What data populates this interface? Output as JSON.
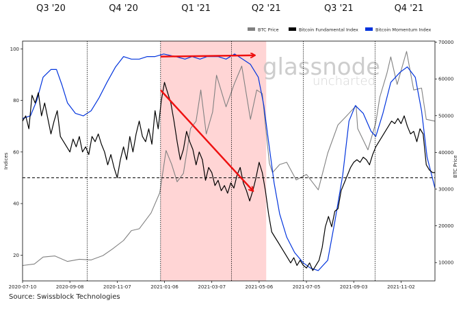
{
  "chart_data": {
    "type": "line",
    "quarter_labels": [
      "Q3 '20",
      "Q4 '20",
      "Q1 '21",
      "Q2 '21",
      "Q3 '21",
      "Q4 '21"
    ],
    "x_tick_labels": [
      "2020-07-10",
      "2020-09-08",
      "2020-11-07",
      "2021-01-06",
      "2021-03-07",
      "2021-05-06",
      "2021-07-05",
      "2021-09-03",
      "2021-11-02"
    ],
    "xlim": [
      "2020-07-10",
      "2021-12-15"
    ],
    "ylabel_left": "Indices",
    "ylabel_right": "BTC Price",
    "ylim_left": [
      10,
      103
    ],
    "yticks_left": [
      20,
      40,
      60,
      80,
      100
    ],
    "ylim_right": [
      5000,
      70300
    ],
    "yticks_right": [
      10000,
      20000,
      30000,
      40000,
      50000,
      60000,
      70000
    ],
    "legend": [
      {
        "name": "BTC Price",
        "color": "#808080"
      },
      {
        "name": "Bitcoin Fundamental Index",
        "color": "#000000"
      },
      {
        "name": "Bitcoin Momentum Index",
        "color": "#0033dd"
      }
    ],
    "reference_line": {
      "y": 50,
      "style": "dashed"
    },
    "highlight_span": {
      "from": "2021-01-01",
      "to": "2021-05-15",
      "color": "#ffd5d5"
    },
    "vertical_markers": [
      "2020-09-30",
      "2021-01-01",
      "2021-04-01",
      "2021-07-01",
      "2021-09-30"
    ],
    "watermark": {
      "line1": "glassnode",
      "line2": "uncharted"
    },
    "series": [
      {
        "name": "BTC Price",
        "color": "#808080",
        "axis": "right",
        "points": [
          [
            "2020-07-10",
            9200
          ],
          [
            "2020-07-25",
            9600
          ],
          [
            "2020-08-05",
            11500
          ],
          [
            "2020-08-20",
            11800
          ],
          [
            "2020-09-05",
            10300
          ],
          [
            "2020-09-20",
            10900
          ],
          [
            "2020-10-05",
            10700
          ],
          [
            "2020-10-20",
            11900
          ],
          [
            "2020-11-01",
            13700
          ],
          [
            "2020-11-15",
            16000
          ],
          [
            "2020-11-25",
            18700
          ],
          [
            "2020-12-05",
            19200
          ],
          [
            "2020-12-20",
            23500
          ],
          [
            "2020-12-31",
            29000
          ],
          [
            "2021-01-08",
            40500
          ],
          [
            "2021-01-15",
            36800
          ],
          [
            "2021-01-22",
            32000
          ],
          [
            "2021-01-30",
            34300
          ],
          [
            "2021-02-08",
            46500
          ],
          [
            "2021-02-15",
            48500
          ],
          [
            "2021-02-21",
            57000
          ],
          [
            "2021-02-28",
            45000
          ],
          [
            "2021-03-08",
            51000
          ],
          [
            "2021-03-13",
            61000
          ],
          [
            "2021-03-25",
            52400
          ],
          [
            "2021-04-05",
            58900
          ],
          [
            "2021-04-14",
            63500
          ],
          [
            "2021-04-25",
            49000
          ],
          [
            "2021-05-03",
            57000
          ],
          [
            "2021-05-10",
            56000
          ],
          [
            "2021-05-13",
            49500
          ],
          [
            "2021-05-19",
            37000
          ],
          [
            "2021-05-23",
            34500
          ],
          [
            "2021-06-01",
            36700
          ],
          [
            "2021-06-10",
            37300
          ],
          [
            "2021-06-22",
            32500
          ],
          [
            "2021-07-05",
            34000
          ],
          [
            "2021-07-20",
            29800
          ],
          [
            "2021-08-01",
            39800
          ],
          [
            "2021-08-14",
            47500
          ],
          [
            "2021-08-23",
            49500
          ],
          [
            "2021-09-06",
            52700
          ],
          [
            "2021-09-08",
            46500
          ],
          [
            "2021-09-21",
            40700
          ],
          [
            "2021-10-01",
            48100
          ],
          [
            "2021-10-06",
            55000
          ],
          [
            "2021-10-15",
            61500
          ],
          [
            "2021-10-20",
            66000
          ],
          [
            "2021-10-28",
            58500
          ],
          [
            "2021-11-09",
            67500
          ],
          [
            "2021-11-18",
            57000
          ],
          [
            "2021-11-28",
            57500
          ],
          [
            "2021-12-04",
            49000
          ],
          [
            "2021-12-15",
            48500
          ]
        ]
      },
      {
        "name": "Bitcoin Fundamental Index",
        "color": "#000000",
        "axis": "left",
        "points": [
          [
            "2020-07-10",
            72
          ],
          [
            "2020-07-14",
            74
          ],
          [
            "2020-07-18",
            69
          ],
          [
            "2020-07-22",
            82
          ],
          [
            "2020-07-26",
            79
          ],
          [
            "2020-07-30",
            83
          ],
          [
            "2020-08-03",
            74
          ],
          [
            "2020-08-07",
            79
          ],
          [
            "2020-08-11",
            73
          ],
          [
            "2020-08-15",
            67
          ],
          [
            "2020-08-19",
            72
          ],
          [
            "2020-08-23",
            76
          ],
          [
            "2020-08-27",
            66
          ],
          [
            "2020-08-31",
            64
          ],
          [
            "2020-09-04",
            62
          ],
          [
            "2020-09-08",
            60
          ],
          [
            "2020-09-12",
            65
          ],
          [
            "2020-09-16",
            62
          ],
          [
            "2020-09-20",
            66
          ],
          [
            "2020-09-24",
            60
          ],
          [
            "2020-09-28",
            62
          ],
          [
            "2020-10-02",
            59
          ],
          [
            "2020-10-06",
            66
          ],
          [
            "2020-10-10",
            64
          ],
          [
            "2020-10-14",
            67
          ],
          [
            "2020-10-18",
            63
          ],
          [
            "2020-10-22",
            60
          ],
          [
            "2020-10-26",
            55
          ],
          [
            "2020-10-30",
            59
          ],
          [
            "2020-11-03",
            54
          ],
          [
            "2020-11-07",
            50
          ],
          [
            "2020-11-11",
            57
          ],
          [
            "2020-11-15",
            62
          ],
          [
            "2020-11-19",
            57
          ],
          [
            "2020-11-23",
            66
          ],
          [
            "2020-11-27",
            60
          ],
          [
            "2020-12-01",
            67
          ],
          [
            "2020-12-05",
            72
          ],
          [
            "2020-12-09",
            66
          ],
          [
            "2020-12-13",
            64
          ],
          [
            "2020-12-17",
            69
          ],
          [
            "2020-12-21",
            63
          ],
          [
            "2020-12-25",
            76
          ],
          [
            "2020-12-29",
            69
          ],
          [
            "2021-01-02",
            80
          ],
          [
            "2021-01-06",
            87
          ],
          [
            "2021-01-10",
            83
          ],
          [
            "2021-01-14",
            79
          ],
          [
            "2021-01-18",
            72
          ],
          [
            "2021-01-22",
            64
          ],
          [
            "2021-01-26",
            57
          ],
          [
            "2021-01-30",
            61
          ],
          [
            "2021-02-03",
            68
          ],
          [
            "2021-02-07",
            64
          ],
          [
            "2021-02-11",
            61
          ],
          [
            "2021-02-15",
            55
          ],
          [
            "2021-02-19",
            60
          ],
          [
            "2021-02-23",
            57
          ],
          [
            "2021-02-27",
            49
          ],
          [
            "2021-03-03",
            54
          ],
          [
            "2021-03-07",
            52
          ],
          [
            "2021-03-11",
            47
          ],
          [
            "2021-03-15",
            49
          ],
          [
            "2021-03-19",
            45
          ],
          [
            "2021-03-23",
            47
          ],
          [
            "2021-03-27",
            44
          ],
          [
            "2021-03-31",
            48
          ],
          [
            "2021-04-04",
            46
          ],
          [
            "2021-04-08",
            51
          ],
          [
            "2021-04-12",
            54
          ],
          [
            "2021-04-16",
            48
          ],
          [
            "2021-04-20",
            45
          ],
          [
            "2021-04-24",
            41
          ],
          [
            "2021-04-28",
            45
          ],
          [
            "2021-05-02",
            50
          ],
          [
            "2021-05-06",
            56
          ],
          [
            "2021-05-10",
            52
          ],
          [
            "2021-05-14",
            45
          ],
          [
            "2021-05-18",
            36
          ],
          [
            "2021-05-22",
            29
          ],
          [
            "2021-05-26",
            27
          ],
          [
            "2021-05-30",
            25
          ],
          [
            "2021-06-03",
            23
          ],
          [
            "2021-06-07",
            21
          ],
          [
            "2021-06-11",
            19
          ],
          [
            "2021-06-15",
            17
          ],
          [
            "2021-06-19",
            19
          ],
          [
            "2021-06-23",
            16
          ],
          [
            "2021-06-27",
            18
          ],
          [
            "2021-07-01",
            16
          ],
          [
            "2021-07-05",
            15
          ],
          [
            "2021-07-09",
            17
          ],
          [
            "2021-07-13",
            14
          ],
          [
            "2021-07-17",
            16
          ],
          [
            "2021-07-21",
            18
          ],
          [
            "2021-07-25",
            23
          ],
          [
            "2021-07-29",
            31
          ],
          [
            "2021-08-02",
            35
          ],
          [
            "2021-08-06",
            31
          ],
          [
            "2021-08-10",
            37
          ],
          [
            "2021-08-14",
            38
          ],
          [
            "2021-08-18",
            45
          ],
          [
            "2021-08-22",
            48
          ],
          [
            "2021-08-26",
            51
          ],
          [
            "2021-08-30",
            54
          ],
          [
            "2021-09-03",
            56
          ],
          [
            "2021-09-07",
            57
          ],
          [
            "2021-09-11",
            56
          ],
          [
            "2021-09-15",
            58
          ],
          [
            "2021-09-19",
            57
          ],
          [
            "2021-09-23",
            55
          ],
          [
            "2021-09-27",
            59
          ],
          [
            "2021-10-01",
            62
          ],
          [
            "2021-10-05",
            64
          ],
          [
            "2021-10-09",
            66
          ],
          [
            "2021-10-13",
            68
          ],
          [
            "2021-10-17",
            70
          ],
          [
            "2021-10-21",
            72
          ],
          [
            "2021-10-25",
            71
          ],
          [
            "2021-10-29",
            73
          ],
          [
            "2021-11-02",
            71
          ],
          [
            "2021-11-06",
            74
          ],
          [
            "2021-11-10",
            70
          ],
          [
            "2021-11-14",
            67
          ],
          [
            "2021-11-18",
            68
          ],
          [
            "2021-11-22",
            64
          ],
          [
            "2021-11-26",
            69
          ],
          [
            "2021-11-30",
            67
          ],
          [
            "2021-12-04",
            55
          ],
          [
            "2021-12-08",
            53
          ],
          [
            "2021-12-12",
            52
          ],
          [
            "2021-12-15",
            52
          ]
        ]
      },
      {
        "name": "Bitcoin Momentum Index",
        "color": "#0033dd",
        "axis": "left",
        "points": [
          [
            "2020-07-10",
            73
          ],
          [
            "2020-07-20",
            74
          ],
          [
            "2020-07-28",
            80
          ],
          [
            "2020-08-05",
            89
          ],
          [
            "2020-08-15",
            92
          ],
          [
            "2020-08-22",
            92
          ],
          [
            "2020-08-29",
            86
          ],
          [
            "2020-09-05",
            79
          ],
          [
            "2020-09-15",
            75
          ],
          [
            "2020-09-25",
            74
          ],
          [
            "2020-10-05",
            76
          ],
          [
            "2020-10-15",
            81
          ],
          [
            "2020-10-25",
            87
          ],
          [
            "2020-11-05",
            93
          ],
          [
            "2020-11-15",
            97
          ],
          [
            "2020-11-25",
            96
          ],
          [
            "2020-12-05",
            96
          ],
          [
            "2020-12-15",
            97
          ],
          [
            "2020-12-25",
            97
          ],
          [
            "2021-01-05",
            98
          ],
          [
            "2021-01-20",
            97
          ],
          [
            "2021-02-01",
            96
          ],
          [
            "2021-02-10",
            97
          ],
          [
            "2021-02-20",
            96
          ],
          [
            "2021-03-01",
            97
          ],
          [
            "2021-03-15",
            97
          ],
          [
            "2021-03-25",
            96
          ],
          [
            "2021-04-05",
            98
          ],
          [
            "2021-04-15",
            96
          ],
          [
            "2021-04-25",
            94
          ],
          [
            "2021-05-05",
            89
          ],
          [
            "2021-05-12",
            78
          ],
          [
            "2021-05-18",
            64
          ],
          [
            "2021-05-25",
            48
          ],
          [
            "2021-06-01",
            36
          ],
          [
            "2021-06-10",
            27
          ],
          [
            "2021-06-20",
            21
          ],
          [
            "2021-07-01",
            17
          ],
          [
            "2021-07-10",
            15
          ],
          [
            "2021-07-20",
            14
          ],
          [
            "2021-08-01",
            18
          ],
          [
            "2021-08-10",
            33
          ],
          [
            "2021-08-20",
            51
          ],
          [
            "2021-08-28",
            72
          ],
          [
            "2021-09-05",
            78
          ],
          [
            "2021-09-15",
            75
          ],
          [
            "2021-09-25",
            68
          ],
          [
            "2021-10-01",
            66
          ],
          [
            "2021-10-10",
            75
          ],
          [
            "2021-10-20",
            87
          ],
          [
            "2021-11-01",
            91
          ],
          [
            "2021-11-10",
            93
          ],
          [
            "2021-11-20",
            89
          ],
          [
            "2021-11-28",
            76
          ],
          [
            "2021-12-05",
            58
          ],
          [
            "2021-12-15",
            46
          ]
        ]
      }
    ]
  },
  "annotations": {
    "arrows": [
      {
        "from": [
          "2021-01-01",
          97
        ],
        "to": [
          "2021-04-30",
          97.5
        ],
        "color": "#ee1111"
      },
      {
        "from": [
          "2021-01-01",
          84
        ],
        "to": [
          "2021-04-28",
          45
        ],
        "color": "#ee1111"
      }
    ]
  },
  "source": "Source: Swissblock Technologies"
}
